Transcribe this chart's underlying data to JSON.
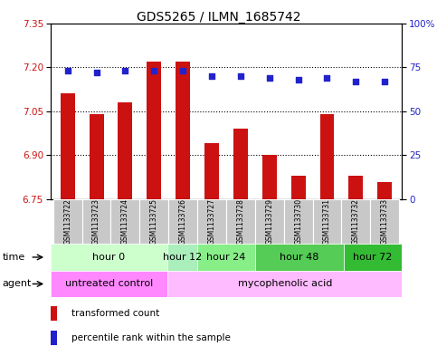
{
  "title": "GDS5265 / ILMN_1685742",
  "samples": [
    "GSM1133722",
    "GSM1133723",
    "GSM1133724",
    "GSM1133725",
    "GSM1133726",
    "GSM1133727",
    "GSM1133728",
    "GSM1133729",
    "GSM1133730",
    "GSM1133731",
    "GSM1133732",
    "GSM1133733"
  ],
  "bar_values": [
    7.11,
    7.04,
    7.08,
    7.22,
    7.22,
    6.94,
    6.99,
    6.9,
    6.83,
    7.04,
    6.83,
    6.81
  ],
  "dot_values": [
    73,
    72,
    73,
    73,
    73,
    70,
    70,
    69,
    68,
    69,
    67,
    67
  ],
  "ylim_left": [
    6.75,
    7.35
  ],
  "ylim_right": [
    0,
    100
  ],
  "yticks_left": [
    6.75,
    6.9,
    7.05,
    7.2,
    7.35
  ],
  "yticks_right": [
    0,
    25,
    50,
    75,
    100
  ],
  "hlines": [
    6.9,
    7.05,
    7.2
  ],
  "bar_color": "#cc1111",
  "dot_color": "#2222cc",
  "bar_width": 0.5,
  "time_groups": [
    {
      "label": "hour 0",
      "start": 0,
      "end": 4,
      "color": "#ccffcc"
    },
    {
      "label": "hour 12",
      "start": 4,
      "end": 5,
      "color": "#aaeebb"
    },
    {
      "label": "hour 24",
      "start": 5,
      "end": 7,
      "color": "#88ee88"
    },
    {
      "label": "hour 48",
      "start": 7,
      "end": 10,
      "color": "#55cc55"
    },
    {
      "label": "hour 72",
      "start": 10,
      "end": 12,
      "color": "#33bb33"
    }
  ],
  "agent_groups": [
    {
      "label": "untreated control",
      "start": 0,
      "end": 4,
      "color": "#ff88ff"
    },
    {
      "label": "mycophenolic acid",
      "start": 4,
      "end": 12,
      "color": "#ffbbff"
    }
  ],
  "legend_bar_label": "transformed count",
  "legend_dot_label": "percentile rank within the sample",
  "sample_bg": "#c8c8c8",
  "plot_bg": "#ffffff",
  "title_fontsize": 10,
  "tick_fontsize": 7.5,
  "sample_fontsize": 5.5,
  "row_fontsize": 8,
  "legend_fontsize": 7.5
}
